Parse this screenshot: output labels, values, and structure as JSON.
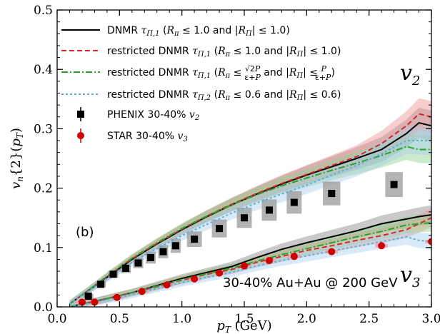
{
  "chart_data": {
    "type": "line",
    "panel_label": "(b)",
    "annotation": "30-40% Au+Au @ 200 GeV",
    "harmonic_labels": [
      "v2",
      "v3"
    ],
    "xlabel": "p_T (GeV)",
    "ylabel": "v_n{2}(p_T)",
    "xlim": [
      0.0,
      3.0
    ],
    "ylim": [
      0.0,
      0.5
    ],
    "x_ticks": [
      "0.0",
      "0.5",
      "1.0",
      "1.5",
      "2.0",
      "2.5",
      "3.0"
    ],
    "y_ticks": [
      "0.0",
      "0.1",
      "0.2",
      "0.3",
      "0.4",
      "0.5"
    ],
    "legend": {
      "placement": "top-left",
      "entries": [
        {
          "label": "DNMR τ_Π,1 (R_π ≤ 1.0 and |R_Π| ≤ 1.0)",
          "color": "#000000",
          "style": "solid"
        },
        {
          "label": "restricted DNMR τ_Π,1 (R_π ≤ 1.0 and |R_Π| ≤ 1.0)",
          "color": "#d62728",
          "style": "dashed"
        },
        {
          "label": "restricted DNMR τ_Π,1 (R_π ≤ √2P/(ε+P) and |R_Π| ≤ P/(ε+P))",
          "color": "#2ca02c",
          "style": "dashdot"
        },
        {
          "label": "restricted DNMR τ_Π,2 (R_π ≤ 0.6 and |R_Π| ≤ 0.6)",
          "color": "#5aaee0",
          "style": "dotted"
        },
        {
          "label": "PHENIX 30-40% v_2",
          "color": "#000000",
          "style": "square-marker"
        },
        {
          "label": "STAR 30-40% v_3",
          "color": "#d00000",
          "style": "circle-marker"
        }
      ]
    },
    "model_x": [
      0.1,
      0.2,
      0.3,
      0.4,
      0.5,
      0.6,
      0.7,
      0.8,
      0.9,
      1.0,
      1.2,
      1.4,
      1.6,
      1.8,
      2.0,
      2.2,
      2.4,
      2.6,
      2.8,
      2.9,
      3.0
    ],
    "v2_series": [
      {
        "name": "DNMR τ_Π,1",
        "color": "#000000",
        "band": "#888888",
        "values": [
          0.005,
          0.02,
          0.035,
          0.05,
          0.065,
          0.08,
          0.093,
          0.106,
          0.118,
          0.13,
          0.152,
          0.172,
          0.19,
          0.207,
          0.222,
          0.236,
          0.25,
          0.265,
          0.292,
          0.31,
          0.305
        ]
      },
      {
        "name": "restricted DNMR τ_Π,1",
        "color": "#d62728",
        "band": "#f09090",
        "values": [
          0.005,
          0.02,
          0.036,
          0.051,
          0.066,
          0.081,
          0.094,
          0.107,
          0.119,
          0.131,
          0.153,
          0.173,
          0.191,
          0.208,
          0.223,
          0.238,
          0.253,
          0.275,
          0.305,
          0.325,
          0.32
        ]
      },
      {
        "name": "restricted DNMR τ_Π,1 (P bounds)",
        "color": "#2ca02c",
        "band": "#8fd08f",
        "values": [
          0.005,
          0.02,
          0.036,
          0.052,
          0.067,
          0.082,
          0.095,
          0.108,
          0.12,
          0.132,
          0.153,
          0.172,
          0.189,
          0.204,
          0.217,
          0.23,
          0.242,
          0.255,
          0.27,
          0.265,
          0.265
        ]
      },
      {
        "name": "restricted DNMR τ_Π,2",
        "color": "#5aaee0",
        "band": "#a8d0ee",
        "values": [
          0.005,
          0.019,
          0.034,
          0.048,
          0.062,
          0.075,
          0.087,
          0.098,
          0.109,
          0.12,
          0.139,
          0.158,
          0.175,
          0.19,
          0.205,
          0.222,
          0.238,
          0.258,
          0.28,
          0.28,
          0.28
        ]
      }
    ],
    "v3_series": [
      {
        "name": "DNMR τ_Π,1",
        "color": "#000000",
        "band": "#888888",
        "values": [
          0.0,
          0.005,
          0.009,
          0.014,
          0.019,
          0.024,
          0.03,
          0.036,
          0.042,
          0.048,
          0.058,
          0.068,
          0.083,
          0.097,
          0.108,
          0.118,
          0.128,
          0.14,
          0.148,
          0.152,
          0.155
        ]
      },
      {
        "name": "restricted DNMR τ_Π,1",
        "color": "#d62728",
        "band": "#f09090",
        "values": [
          0.0,
          0.005,
          0.009,
          0.014,
          0.019,
          0.024,
          0.029,
          0.034,
          0.04,
          0.045,
          0.055,
          0.063,
          0.075,
          0.085,
          0.095,
          0.103,
          0.112,
          0.12,
          0.13,
          0.14,
          0.15
        ]
      },
      {
        "name": "restricted DNMR τ_Π,1 (P bounds)",
        "color": "#2ca02c",
        "band": "#8fd08f",
        "values": [
          0.0,
          0.005,
          0.009,
          0.014,
          0.019,
          0.024,
          0.03,
          0.035,
          0.041,
          0.046,
          0.056,
          0.065,
          0.077,
          0.088,
          0.098,
          0.108,
          0.118,
          0.127,
          0.138,
          0.14,
          0.142
        ]
      },
      {
        "name": "restricted DNMR τ_Π,2",
        "color": "#5aaee0",
        "band": "#a8d0ee",
        "values": [
          0.0,
          0.004,
          0.008,
          0.012,
          0.016,
          0.021,
          0.026,
          0.031,
          0.036,
          0.041,
          0.05,
          0.058,
          0.069,
          0.078,
          0.086,
          0.094,
          0.102,
          0.11,
          0.118,
          0.112,
          0.11
        ]
      }
    ],
    "phenix_v2": {
      "x": [
        0.25,
        0.35,
        0.45,
        0.55,
        0.65,
        0.75,
        0.85,
        0.95,
        1.1,
        1.3,
        1.5,
        1.7,
        1.9,
        2.2,
        2.7
      ],
      "y": [
        0.018,
        0.038,
        0.055,
        0.065,
        0.074,
        0.083,
        0.093,
        0.103,
        0.114,
        0.132,
        0.15,
        0.163,
        0.176,
        0.191,
        0.206
      ],
      "sys_err": [
        0.004,
        0.005,
        0.006,
        0.008,
        0.009,
        0.01,
        0.011,
        0.012,
        0.013,
        0.015,
        0.017,
        0.018,
        0.019,
        0.02,
        0.021
      ]
    },
    "star_v3": {
      "x": [
        0.2,
        0.3,
        0.48,
        0.68,
        0.88,
        1.1,
        1.3,
        1.5,
        1.7,
        1.9,
        2.2,
        2.6,
        3.0
      ],
      "y": [
        0.008,
        0.008,
        0.016,
        0.026,
        0.037,
        0.047,
        0.057,
        0.069,
        0.078,
        0.085,
        0.093,
        0.103,
        0.11
      ]
    }
  }
}
